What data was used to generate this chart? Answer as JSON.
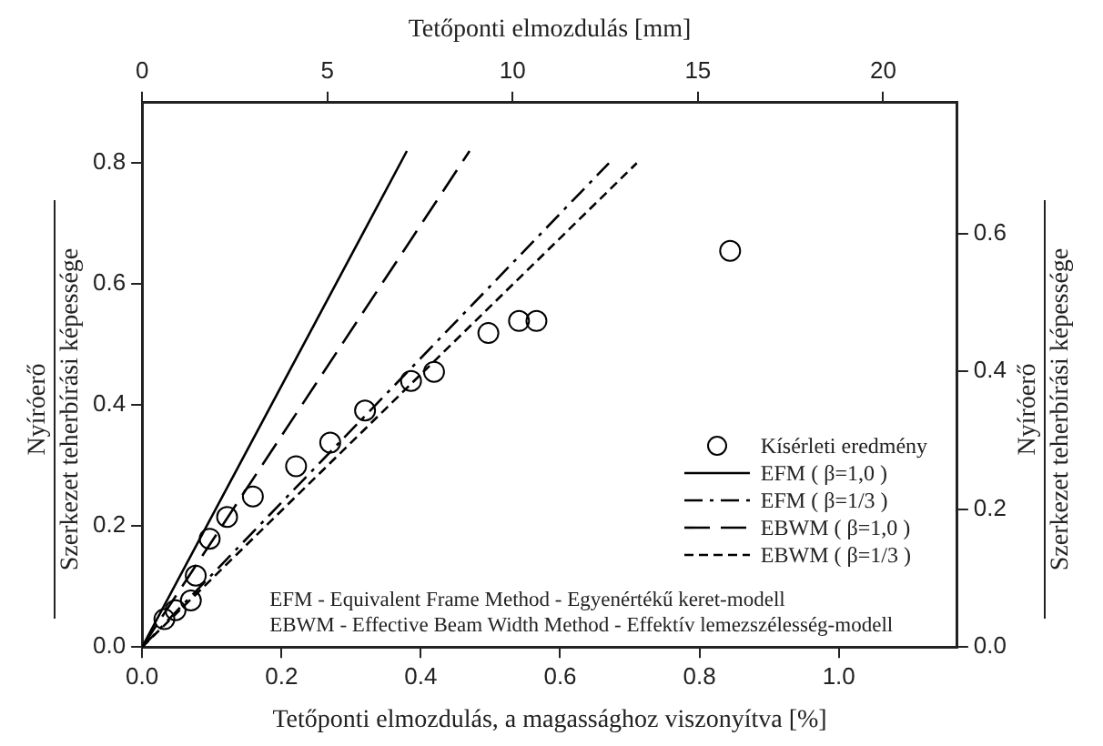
{
  "chart_data": {
    "type": "scatter",
    "xlabel": "Tetőponti elmozdulás, a magassághoz viszonyítva [%]",
    "x2label": "Tetőponti elmozdulás [mm]",
    "ylabel": "Nyíróerő\nSzerkezet teherbírási képessége",
    "y2label": "Nyíróerő\nSzerkezet teherbírási képessége",
    "xlim": [
      0,
      1.17
    ],
    "xticks": [
      {
        "value": 0,
        "label": "0.0"
      },
      {
        "value": 0.2,
        "label": "0.2"
      },
      {
        "value": 0.4,
        "label": "0.4"
      },
      {
        "value": 0.6,
        "label": "0.6"
      },
      {
        "value": 0.8,
        "label": "0.8"
      },
      {
        "value": 1,
        "label": "1.0"
      }
    ],
    "x2lim": [
      0,
      22
    ],
    "x2ticks": [
      0,
      5,
      10,
      15,
      20
    ],
    "ylim": [
      0,
      0.9
    ],
    "yticks": [
      {
        "value": 0,
        "label": "0.0"
      },
      {
        "value": 0.2,
        "label": "0.2"
      },
      {
        "value": 0.4,
        "label": "0.4"
      },
      {
        "value": 0.6,
        "label": "0.6"
      },
      {
        "value": 0.8,
        "label": "0.8"
      }
    ],
    "y2lim": [
      0,
      0.79
    ],
    "y2ticks": [
      {
        "value": 0,
        "label": "0.0"
      },
      {
        "value": 0.2,
        "label": "0.2"
      },
      {
        "value": 0.4,
        "label": "0.4"
      },
      {
        "value": 0.6,
        "label": "0.6"
      }
    ],
    "legend": "bottom right",
    "series": [
      {
        "name": "Kísérleti eredmény",
        "type": "scatter",
        "marker": "circle",
        "color": "#000000",
        "x": [
          0.032,
          0.048,
          0.07,
          0.077,
          0.097,
          0.122,
          0.159,
          0.221,
          0.27,
          0.32,
          0.386,
          0.419,
          0.497,
          0.541,
          0.566,
          0.844
        ],
        "values": [
          0.046,
          0.061,
          0.077,
          0.118,
          0.179,
          0.215,
          0.249,
          0.299,
          0.338,
          0.391,
          0.44,
          0.455,
          0.519,
          0.539,
          0.539,
          0.655
        ]
      },
      {
        "name": "EFM ( β=1,0 )",
        "type": "line",
        "marker": "none",
        "line_style": "solid",
        "color": "#000000",
        "x": [
          0,
          0.38
        ],
        "values": [
          0,
          0.82
        ]
      },
      {
        "name": "EFM ( β=1/3 )",
        "type": "line",
        "marker": "none",
        "line_style": "dashdot",
        "color": "#000000",
        "x": [
          0,
          0.67
        ],
        "values": [
          0,
          0.8
        ]
      },
      {
        "name": "EBWM ( β=1,0 )",
        "type": "line",
        "marker": "none",
        "line_style": "longdash",
        "color": "#000000",
        "x": [
          0,
          0.47
        ],
        "values": [
          0,
          0.82
        ]
      },
      {
        "name": "EBWM ( β=1/3 )",
        "type": "line",
        "marker": "none",
        "line_style": "dashed",
        "color": "#000000",
        "x": [
          0,
          0.71
        ],
        "values": [
          0,
          0.8
        ]
      }
    ],
    "annotations": [
      "EFM - Equivalent Frame Method - Egyenértékű keret-modell",
      "EBWM - Effective Beam Width Method - Effektív lemezszélesség-modell"
    ]
  }
}
